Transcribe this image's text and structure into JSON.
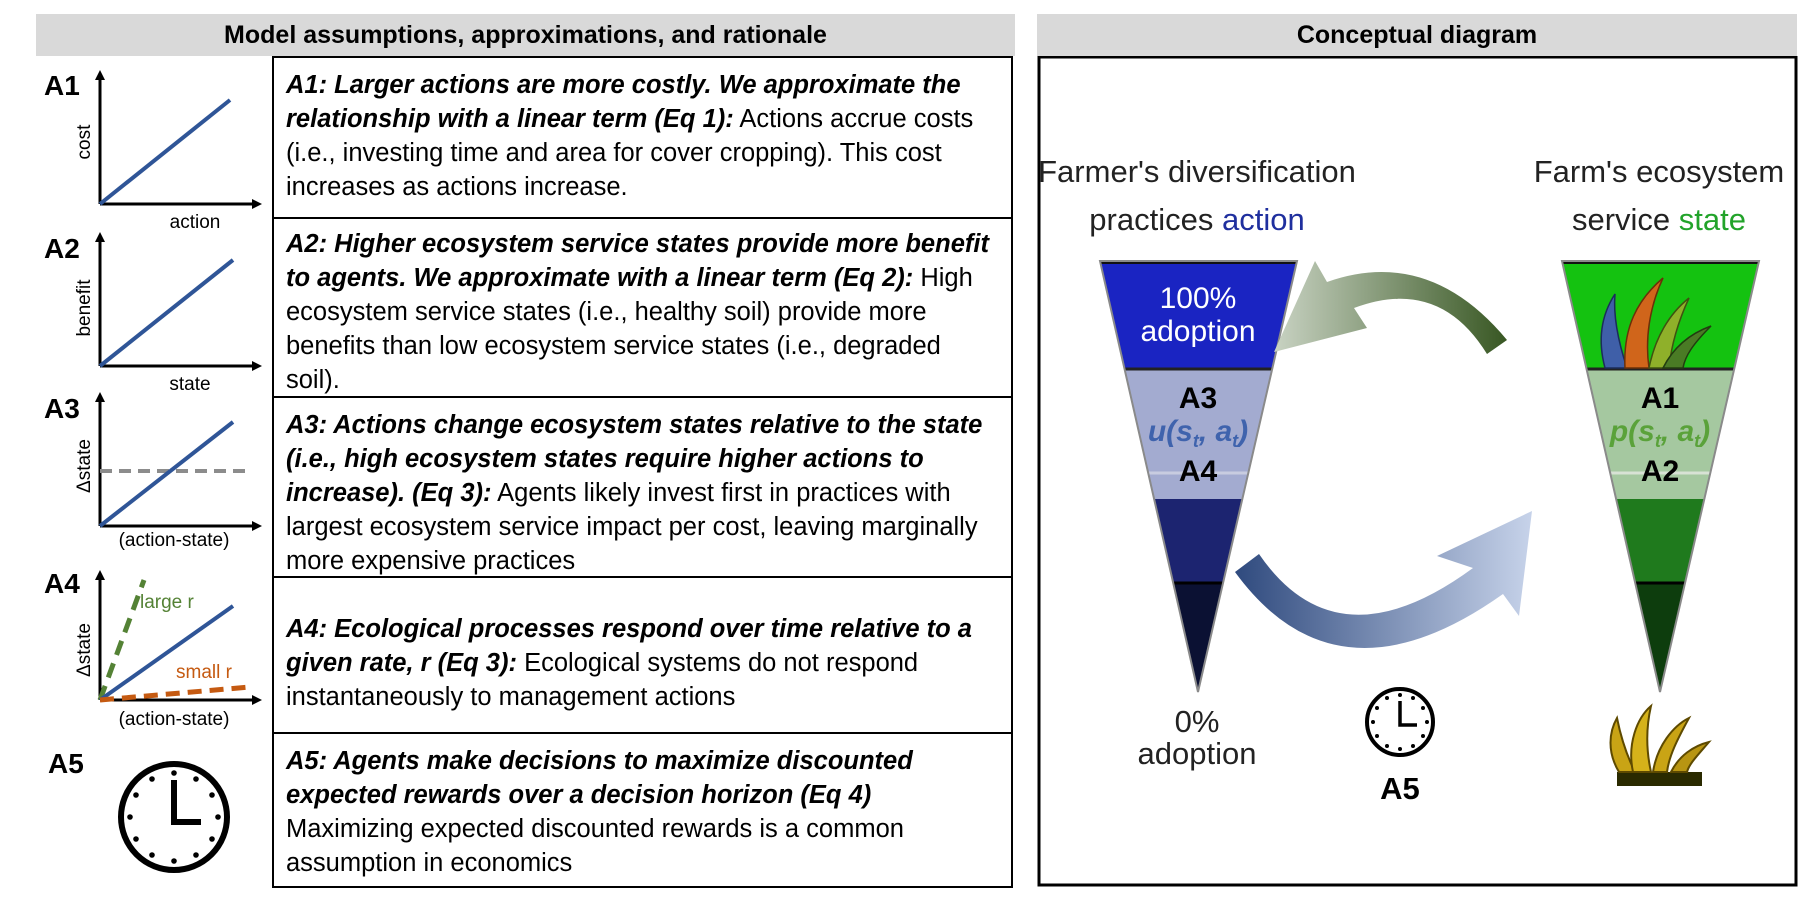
{
  "headers": {
    "left": "Model assumptions, approximations, and rationale",
    "right": "Conceptual diagram"
  },
  "assumptions": [
    {
      "id": "A1",
      "bold": "A1: Larger actions are more costly. We approximate the relationship with a linear term (Eq 1):",
      "text": " Actions accrue costs (i.e., investing time and area for cover cropping). This cost increases as actions increase.",
      "ylabel": "cost",
      "xlabel": "action"
    },
    {
      "id": "A2",
      "bold": "A2: Higher ecosystem service states provide more benefit to agents. We approximate with a linear term (Eq 2):",
      "text": "  High ecosystem service states (i.e., healthy soil) provide more benefits than low ecosystem service states (i.e., degraded soil).",
      "ylabel": "benefit",
      "xlabel": "state"
    },
    {
      "id": "A3",
      "bold": "A3: Actions change ecosystem states relative to the state (i.e., high ecosystem states require higher actions to increase). (Eq 3):",
      "text": " Agents likely invest first in practices with largest ecosystem service impact per cost, leaving marginally more expensive practices",
      "ylabel": "Δstate",
      "xlabel": "(action-state)"
    },
    {
      "id": "A4",
      "bold": "A4: Ecological processes respond over time relative to a given rate, r (Eq 3):",
      "text": " Ecological systems do not respond instantaneously to management actions",
      "ylabel": "Δstate",
      "xlabel": "(action-state)",
      "large_label": "large r",
      "small_label": "small r"
    },
    {
      "id": "A5",
      "bold": "A5: Agents make decisions to maximize discounted expected rewards over a decision horizon (Eq 4)",
      "text": " Maximizing expected discounted rewards is a common assumption in economics"
    }
  ],
  "diagram": {
    "farmer_title_line1": "Farmer's diversification",
    "farmer_title_prefix": "practices ",
    "farmer_title_action": "action",
    "farm_title_line1": "Farm's ecosystem",
    "farm_title_prefix": "service ",
    "farm_title_state": "state",
    "top_label_line1": "100%",
    "top_label_line2": "adoption",
    "bottom_label_line1": "0%",
    "bottom_label_line2": "adoption",
    "left_mid_top": "A3",
    "left_func": "u(s",
    "left_func_sub1": "t",
    "left_func_mid": ", a",
    "left_func_sub2": "t",
    "left_func_end": ")",
    "left_mid_bottom": "A4",
    "right_mid_top": "A1",
    "right_func": "p(s",
    "right_func_sub1": "t",
    "right_func_mid": ", a",
    "right_func_sub2": "t",
    "right_func_end": ")",
    "right_mid_bottom": "A2",
    "clock_label": "A5"
  },
  "colors": {
    "line_blue": "#2f5597",
    "dashed_gray": "#8c8c8c",
    "large_r_green": "#548235",
    "small_r_orange": "#c55a11",
    "action_blue": "#1f2f9e",
    "state_green": "#22a32a"
  }
}
